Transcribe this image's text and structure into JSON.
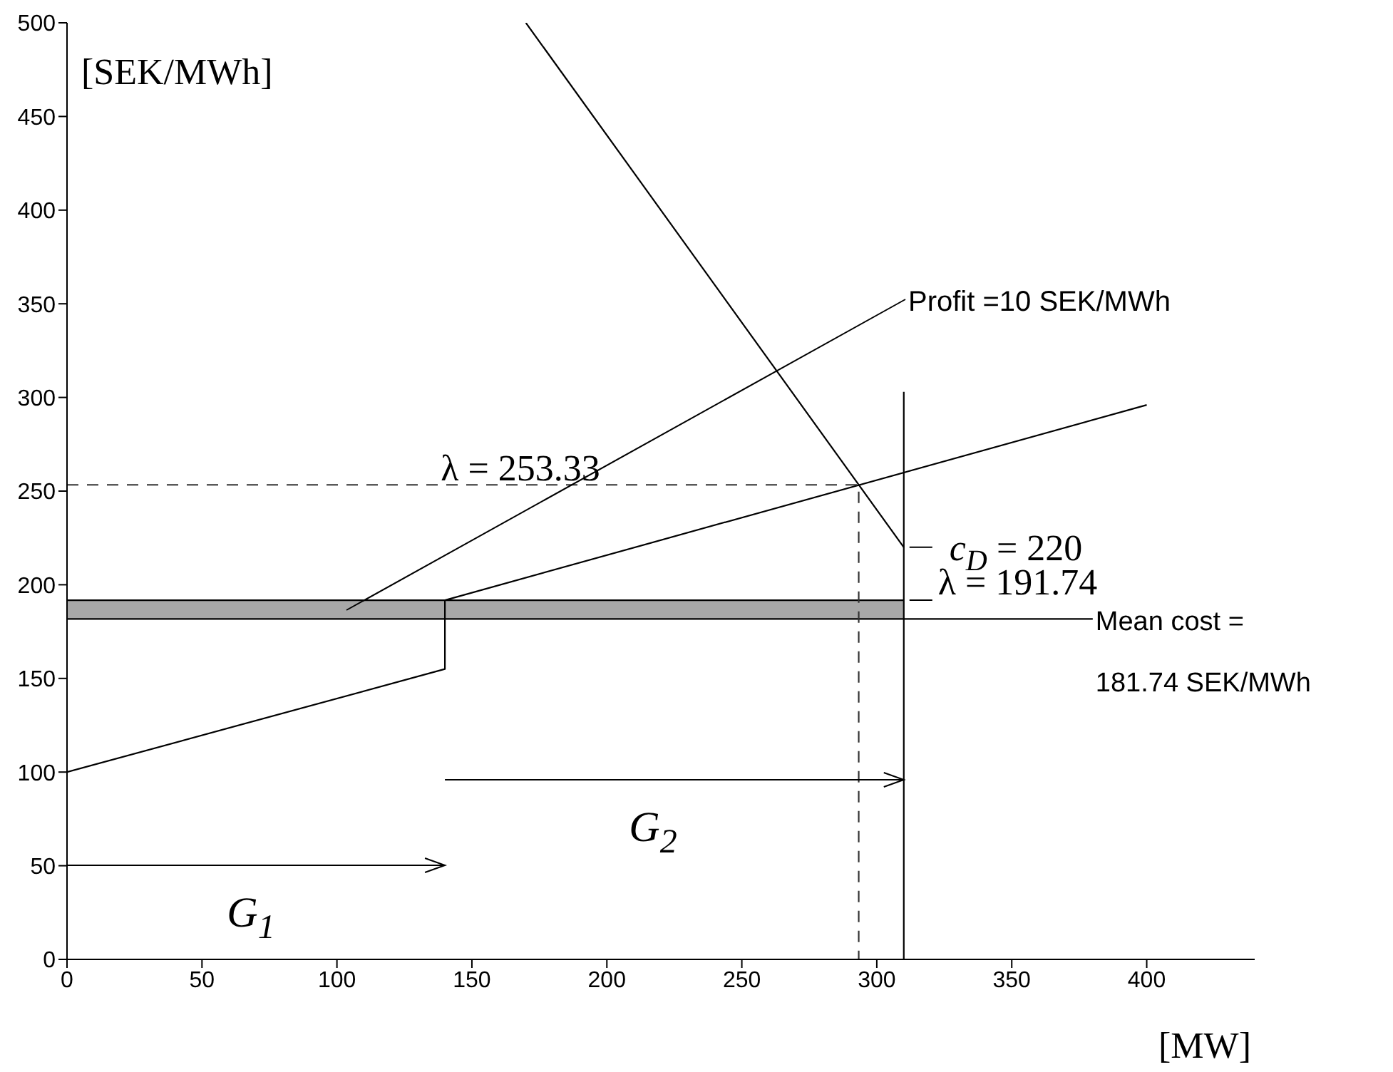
{
  "chart_data": {
    "type": "line",
    "xlabel": "[MW]",
    "ylabel": "[SEK/MWh]",
    "xlim": [
      0,
      440
    ],
    "ylim": [
      0,
      500
    ],
    "xticks": [
      0,
      50,
      100,
      150,
      200,
      250,
      300,
      350,
      400
    ],
    "yticks": [
      0,
      50,
      100,
      150,
      200,
      250,
      300,
      350,
      400,
      450,
      500
    ],
    "series": [
      {
        "color": "#000000",
        "x": [
          0,
          310
        ],
        "values": [
          191.74,
          191.74
        ],
        "lower": [
          181.74,
          181.74
        ],
        "upper": [
          191.74,
          191.74
        ]
      },
      {
        "color": "#000000",
        "x": [
          0,
          380
        ],
        "values": [
          181.74,
          181.74
        ]
      },
      {
        "color": "#000000",
        "x": [
          0,
          140,
          140,
          400
        ],
        "values": [
          100,
          155,
          191.74,
          296
        ]
      },
      {
        "color": "#000000",
        "x": [
          170,
          310
        ],
        "values": [
          500,
          220
        ]
      },
      {
        "color": "#000000",
        "x": [
          310,
          310
        ],
        "values": [
          0,
          303
        ]
      },
      {
        "color": "#333333",
        "line_style": "dashed",
        "x": [
          0,
          293.3,
          293.3
        ],
        "values": [
          253.33,
          253.33,
          0
        ]
      }
    ],
    "annotations": [
      {
        "text": "λ = 253.33",
        "x": 168,
        "y": 253.33
      },
      {
        "text": "c$_{D}$ = 220",
        "x": 310,
        "y": 220
      },
      {
        "text": "λ = 191.74",
        "x": 310,
        "y": 191.74
      },
      {
        "text": "Mean cost =\n181.74 SEK/MWh",
        "x": 380,
        "y": 181.74
      },
      "Profit =10 SEK/MWh",
      "G$_{1}$",
      "G$_{2}$"
    ]
  }
}
